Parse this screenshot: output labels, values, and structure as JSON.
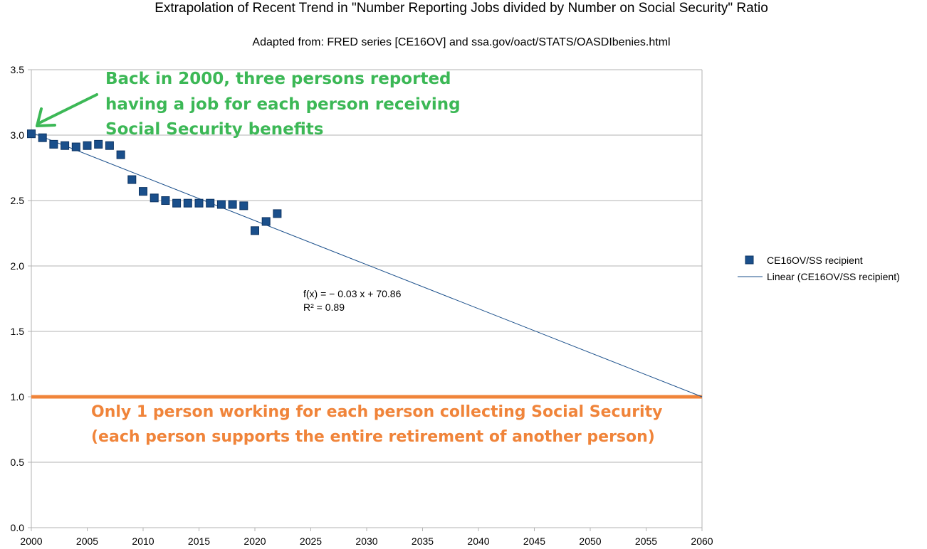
{
  "chart_data": {
    "type": "scatter",
    "title": "Extrapolation of Recent Trend in \"Number Reporting Jobs divided by Number on Social Security\" Ratio",
    "subtitle": "Adapted from: FRED series [CE16OV] and ssa.gov/oact/STATS/OASDIbenies.html",
    "xlabel": "",
    "ylabel": "",
    "xlim": [
      2000,
      2060
    ],
    "ylim": [
      0,
      3.5
    ],
    "x_ticks": [
      "2000",
      "2005",
      "2010",
      "2015",
      "2020",
      "2025",
      "2030",
      "2035",
      "2040",
      "2045",
      "2050",
      "2055",
      "2060"
    ],
    "y_ticks": [
      "0.0",
      "0.5",
      "1.0",
      "1.5",
      "2.0",
      "2.5",
      "3.0",
      "3.5"
    ],
    "grid": "horizontal",
    "legend_position": "right",
    "series": [
      {
        "name": "CE16OV/SS recipient",
        "color": "#1a4f8b",
        "marker": "square",
        "points": [
          {
            "x": 2000,
            "y": 3.01
          },
          {
            "x": 2001,
            "y": 2.98
          },
          {
            "x": 2002,
            "y": 2.93
          },
          {
            "x": 2003,
            "y": 2.92
          },
          {
            "x": 2004,
            "y": 2.91
          },
          {
            "x": 2005,
            "y": 2.92
          },
          {
            "x": 2006,
            "y": 2.93
          },
          {
            "x": 2007,
            "y": 2.92
          },
          {
            "x": 2008,
            "y": 2.85
          },
          {
            "x": 2009,
            "y": 2.66
          },
          {
            "x": 2010,
            "y": 2.57
          },
          {
            "x": 2011,
            "y": 2.52
          },
          {
            "x": 2012,
            "y": 2.5
          },
          {
            "x": 2013,
            "y": 2.48
          },
          {
            "x": 2014,
            "y": 2.48
          },
          {
            "x": 2015,
            "y": 2.48
          },
          {
            "x": 2016,
            "y": 2.48
          },
          {
            "x": 2017,
            "y": 2.47
          },
          {
            "x": 2018,
            "y": 2.47
          },
          {
            "x": 2019,
            "y": 2.46
          },
          {
            "x": 2020,
            "y": 2.27
          },
          {
            "x": 2021,
            "y": 2.34
          },
          {
            "x": 2022,
            "y": 2.4
          }
        ]
      },
      {
        "name": "Linear (CE16OV/SS recipient)",
        "color": "#1a4f8b",
        "type": "line",
        "points": [
          {
            "x": 2000,
            "y": 3.02
          },
          {
            "x": 2060,
            "y": 1.0
          }
        ]
      }
    ],
    "trendline_equation": "f(x) = − 0.03 x + 70.86",
    "trendline_r2": "R² = 0.89",
    "reference_line": {
      "y": 1.0,
      "color": "#f0843a"
    },
    "annotations": {
      "green_lines": [
        "Back in 2000, three persons reported",
        "having a job for each person receiving",
        "Social Security benefits"
      ],
      "green_color": "#3cb856",
      "orange_lines": [
        "Only 1 person working for each person collecting Social Security",
        "(each person supports the entire retirement of another person)"
      ],
      "orange_color": "#f0843a"
    }
  }
}
